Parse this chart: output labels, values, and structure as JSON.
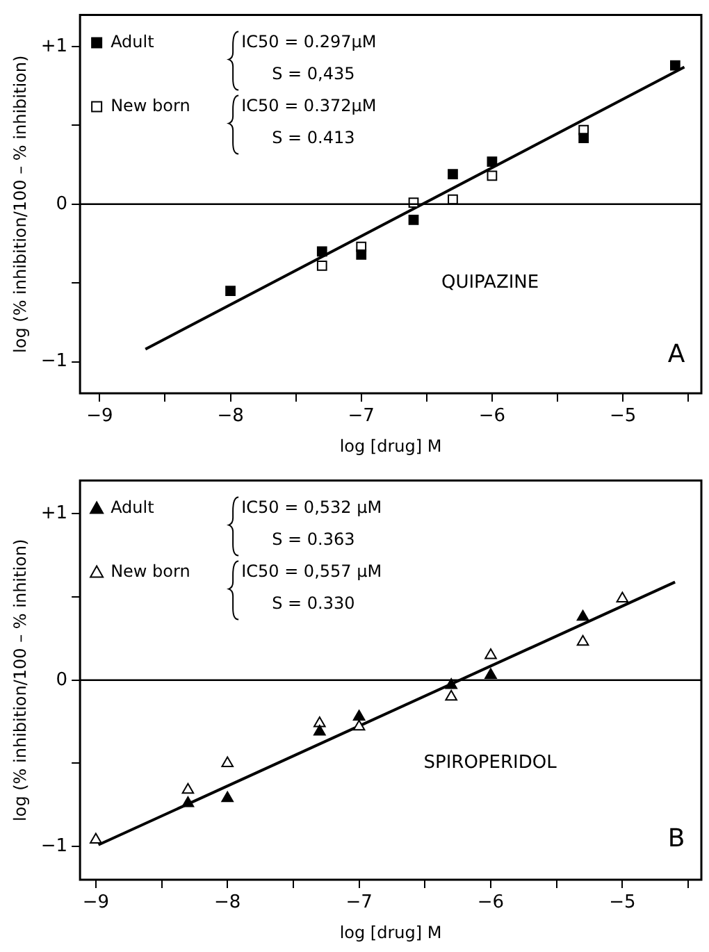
{
  "chart_data": [
    {
      "type": "scatter",
      "xlabel": "log [drug] M",
      "ylabel": "log (% inhibition/100 – % inhibition)",
      "xlim": [
        -9.15,
        -4.4
      ],
      "ylim": [
        -1.2,
        1.2
      ],
      "xticks": [
        {
          "value": -9,
          "label": "−9"
        },
        {
          "value": -8.5,
          "label": null
        },
        {
          "value": -8,
          "label": "−8"
        },
        {
          "value": -7.5,
          "label": null
        },
        {
          "value": -7,
          "label": "−7"
        },
        {
          "value": -6.5,
          "label": null
        },
        {
          "value": -6,
          "label": "−6"
        },
        {
          "value": -5.5,
          "label": null
        },
        {
          "value": -5,
          "label": "−5"
        },
        {
          "value": -4.5,
          "label": null
        }
      ],
      "yticks": [
        {
          "value": -1,
          "label": "−1"
        },
        {
          "value": -0.5,
          "label": null
        },
        0,
        {
          "value": 0.5,
          "label": null
        },
        {
          "value": 1,
          "label": "+1"
        }
      ],
      "grid": false,
      "legend": "top left",
      "series": [
        {
          "name": "Adult",
          "color": "#000000",
          "marker": "square",
          "x": [
            -8,
            -7.3,
            -7,
            -6.6,
            -6.3,
            -6,
            -5.3,
            -4.6
          ],
          "values": [
            -0.55,
            -0.3,
            -0.32,
            -0.1,
            0.19,
            0.27,
            0.42,
            0.88
          ]
        },
        {
          "name": "New born",
          "color": "#ffffff",
          "marker": "square",
          "x": [
            -7.3,
            -7,
            -6.6,
            -6.3,
            -6,
            -5.3
          ],
          "values": [
            -0.39,
            -0.27,
            0.01,
            0.03,
            0.18,
            0.47
          ]
        },
        {
          "type": "line",
          "color": "#000000",
          "marker": "none",
          "x": [
            -8.65,
            -4.53
          ],
          "values": [
            -0.92,
            0.87
          ]
        }
      ],
      "ref_lines": [
        {
          "axis": "y",
          "value": 0,
          "color": "#000000"
        }
      ],
      "annotations": [
        "IC50 = 0.297µM",
        "S = 0,435",
        "IC50 = 0.372µM",
        "S = 0.413",
        "QUIPAZINE",
        "A"
      ]
    },
    {
      "type": "scatter",
      "xlabel": "log [drug] M",
      "ylabel": "log (% inhibition/100 – % inhition)",
      "xlim": [
        -9.12,
        -4.4
      ],
      "ylim": [
        -1.2,
        1.2
      ],
      "xticks": [
        {
          "value": -9,
          "label": "−9"
        },
        {
          "value": -8.5,
          "label": null
        },
        {
          "value": -8,
          "label": "−8"
        },
        {
          "value": -7.5,
          "label": null
        },
        {
          "value": -7,
          "label": "−7"
        },
        {
          "value": -6.5,
          "label": null
        },
        {
          "value": -6,
          "label": "−6"
        },
        {
          "value": -5.5,
          "label": null
        },
        {
          "value": -5,
          "label": "−5"
        },
        {
          "value": -4.5,
          "label": null
        }
      ],
      "yticks": [
        {
          "value": -1,
          "label": "−1"
        },
        {
          "value": -0.5,
          "label": null
        },
        0,
        {
          "value": 0.5,
          "label": null
        },
        {
          "value": 1,
          "label": "+1"
        }
      ],
      "grid": false,
      "legend": "top left",
      "series": [
        {
          "name": "Adult",
          "color": "#000000",
          "marker": "triangle",
          "x": [
            -8.3,
            -8,
            -7.3,
            -7,
            -6.3,
            -6,
            -5.3
          ],
          "values": [
            -0.74,
            -0.71,
            -0.31,
            -0.22,
            -0.03,
            0.03,
            0.38
          ]
        },
        {
          "name": "New born",
          "color": "#ffffff",
          "marker": "triangle",
          "x": [
            -9,
            -8.3,
            -8,
            -7.3,
            -7,
            -6.3,
            -6,
            -5.3,
            -5
          ],
          "values": [
            -0.96,
            -0.66,
            -0.5,
            -0.26,
            -0.28,
            -0.1,
            0.15,
            0.23,
            0.49
          ]
        },
        {
          "type": "line",
          "color": "#000000",
          "marker": "none",
          "x": [
            -8.98,
            -4.6
          ],
          "values": [
            -0.99,
            0.59
          ]
        }
      ],
      "ref_lines": [
        {
          "axis": "y",
          "value": 0,
          "color": "#000000"
        }
      ],
      "annotations": [
        "IC50 = 0,532 µM",
        "S = 0.363",
        "IC50 = 0,557 µM",
        "S = 0.330",
        "SPIROPERIDOL",
        "B"
      ]
    }
  ]
}
